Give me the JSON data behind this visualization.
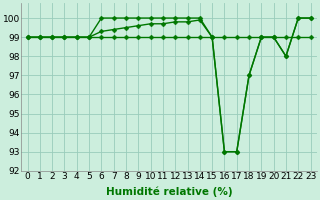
{
  "xlabel": "Humidité relative (%)",
  "background_color": "#cceedd",
  "grid_color": "#99ccbb",
  "line_color": "#007700",
  "x_values": [
    0,
    1,
    2,
    3,
    4,
    5,
    6,
    7,
    8,
    9,
    10,
    11,
    12,
    13,
    14,
    15,
    16,
    17,
    18,
    19,
    20,
    21,
    22,
    23
  ],
  "y1_values": [
    99,
    99,
    99,
    99,
    99,
    99,
    99,
    99,
    99,
    99,
    99,
    99,
    99,
    99,
    99,
    99,
    99,
    99,
    99,
    99,
    99,
    99,
    99,
    99
  ],
  "y2_values": [
    99,
    99,
    99,
    99,
    99,
    99,
    100,
    100,
    100,
    100,
    100,
    100,
    100,
    100,
    100,
    99,
    93,
    93,
    97,
    99,
    99,
    98,
    100,
    100
  ],
  "y3_values": [
    99,
    99,
    99,
    99,
    99,
    99,
    99.3,
    99.4,
    99.5,
    99.6,
    99.7,
    99.7,
    99.8,
    99.8,
    99.9,
    99,
    93,
    93,
    97,
    99,
    99,
    98,
    100,
    100
  ],
  "ylim": [
    92,
    100.8
  ],
  "xlim": [
    -0.5,
    23.5
  ],
  "yticks": [
    92,
    93,
    94,
    95,
    96,
    97,
    98,
    99,
    100
  ],
  "xticks": [
    0,
    1,
    2,
    3,
    4,
    5,
    6,
    7,
    8,
    9,
    10,
    11,
    12,
    13,
    14,
    15,
    16,
    17,
    18,
    19,
    20,
    21,
    22,
    23
  ],
  "tick_fontsize": 6.5,
  "xlabel_fontsize": 7.5,
  "line_width": 1.0,
  "marker_size": 2.5
}
